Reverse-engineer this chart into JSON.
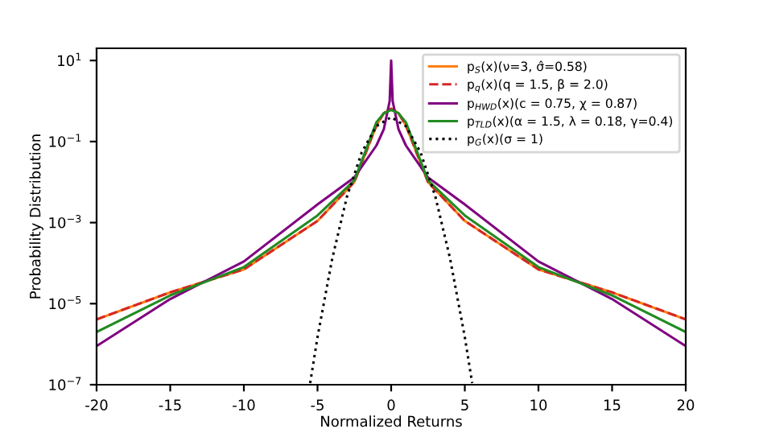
{
  "chart_data": {
    "type": "line",
    "xlabel": "Normalized Returns",
    "ylabel": "Probability Distribution",
    "log": "y",
    "xlim": [
      -20,
      20
    ],
    "xticks": [
      -20,
      -15,
      -10,
      -5,
      0,
      5,
      10,
      15,
      20
    ],
    "ylim": [
      1e-07,
      20
    ],
    "yticks": [
      {
        "value": 10,
        "label": "10$^{1}$"
      },
      {
        "value": 0.1,
        "label": "10$^{−1}$"
      },
      {
        "value": 0.001,
        "label": "10$^{−3}$"
      },
      {
        "value": 1e-05,
        "label": "10$^{−5}$"
      },
      {
        "value": 1e-07,
        "label": "10$^{−7}$"
      }
    ],
    "grid": false,
    "legend": "top right",
    "series": [
      {
        "name": "p$_{S}$(x)(ν=3, σ̂=0.58)",
        "color": "#ff7f0e",
        "line_style": "solid",
        "x": [
          -20,
          -15,
          -10,
          -5,
          -2.5,
          -1,
          -0.5,
          0,
          0.5,
          1,
          2.5,
          5,
          10,
          15,
          20
        ],
        "values": [
          4.1e-06,
          1.9e-05,
          7e-05,
          0.0011,
          0.01,
          0.25,
          0.5,
          0.65,
          0.5,
          0.25,
          0.01,
          0.0011,
          7e-05,
          1.9e-05,
          4.1e-06
        ]
      },
      {
        "name": "p$_{q}$(x)(q = 1.5, β = 2.0)",
        "color": "#d62728",
        "line_style": "dashed",
        "x": [
          -20,
          -15,
          -10,
          -5,
          -2.5,
          -1,
          -0.5,
          0,
          0.5,
          1,
          2.5,
          5,
          10,
          15,
          20
        ],
        "values": [
          4.1e-06,
          1.9e-05,
          7e-05,
          0.0011,
          0.01,
          0.25,
          0.5,
          0.65,
          0.5,
          0.25,
          0.01,
          0.0011,
          7e-05,
          1.9e-05,
          4.1e-06
        ]
      },
      {
        "name": "p$_{HWD}$(x)(c = 0.75, χ = 0.87)",
        "color": "#800080",
        "line_style": "solid",
        "x": [
          -20,
          -15,
          -10,
          -5,
          -2.5,
          -1,
          -0.5,
          -0.1,
          0,
          0.1,
          0.5,
          1,
          2.5,
          5,
          10,
          15,
          20
        ],
        "values": [
          9e-07,
          1.3e-05,
          0.00011,
          0.0028,
          0.013,
          0.08,
          0.2,
          1.0,
          10,
          1.0,
          0.2,
          0.08,
          0.013,
          0.0028,
          0.00011,
          1.3e-05,
          9e-07
        ]
      },
      {
        "name": "p$_{TLD}$(x)(α = 1.5, λ = 0.18, γ=0.4)",
        "color": "#228b22",
        "line_style": "solid",
        "x": [
          -20,
          -15,
          -10,
          -5,
          -2.5,
          -1,
          -0.5,
          0,
          0.5,
          1,
          2.5,
          5,
          10,
          15,
          20
        ],
        "values": [
          2e-06,
          1.6e-05,
          8e-05,
          0.0015,
          0.011,
          0.3,
          0.5,
          0.6,
          0.5,
          0.3,
          0.011,
          0.0015,
          8e-05,
          1.6e-05,
          2e-06
        ]
      },
      {
        "name": "p$_{G}$(x)(σ = 1)",
        "color": "#000000",
        "line_style": "dotted",
        "x": [
          -5.5,
          -5,
          -4,
          -3,
          -2,
          -1,
          0,
          1,
          2,
          3,
          4,
          5,
          5.5
        ],
        "values": [
          1.1e-07,
          1.5e-06,
          0.00013,
          0.0044,
          0.054,
          0.24,
          0.4,
          0.24,
          0.054,
          0.0044,
          0.00013,
          1.5e-06,
          1.1e-07
        ]
      }
    ]
  }
}
